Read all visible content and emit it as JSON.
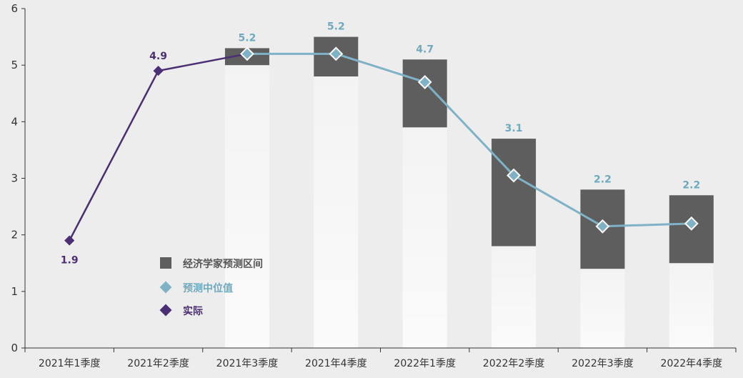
{
  "chart_data": {
    "type": "bar",
    "categories": [
      "2021年1季度",
      "2021年2季度",
      "2021年3季度",
      "2021年4季度",
      "2022年1季度",
      "2022年2季度",
      "2022年3季度",
      "2022年4季度"
    ],
    "ylim": [
      0,
      6
    ],
    "yticks": [
      0,
      1,
      2,
      3,
      4,
      5,
      6
    ],
    "grid": false,
    "series": [
      {
        "name": "经济学家预测区间",
        "type": "range-bar",
        "low": [
          null,
          null,
          5.0,
          4.8,
          3.9,
          1.8,
          1.4,
          1.5
        ],
        "high": [
          null,
          null,
          5.3,
          5.5,
          5.1,
          3.7,
          2.8,
          2.7
        ]
      },
      {
        "name": "预测中位值",
        "type": "line",
        "values": [
          null,
          null,
          5.2,
          5.2,
          4.7,
          3.05,
          2.15,
          2.2
        ],
        "labels": [
          null,
          null,
          "5.2",
          "5.2",
          "4.7",
          "3.1",
          "2.2",
          "2.2"
        ]
      },
      {
        "name": "实际",
        "type": "line",
        "values": [
          1.9,
          4.9,
          5.2,
          null,
          null,
          null,
          null,
          null
        ],
        "labels": [
          "1.9",
          "4.9",
          null,
          null,
          null,
          null,
          null,
          null
        ]
      }
    ],
    "legend": {
      "position": "lower-left",
      "items": [
        {
          "label": "经济学家预测区间",
          "icon": "square",
          "color": "#5e5e5e"
        },
        {
          "label": "预测中位值",
          "icon": "diamond",
          "color": "#7fb2c7"
        },
        {
          "label": "实际",
          "icon": "diamond",
          "color": "#4b2e73"
        }
      ]
    },
    "colors": {
      "range": "#5e5e5e",
      "median": "#7fb2c7",
      "median_label": "#6fa9bd",
      "actual": "#4b2e73",
      "background": "#ededed",
      "axis": "#333333"
    }
  }
}
